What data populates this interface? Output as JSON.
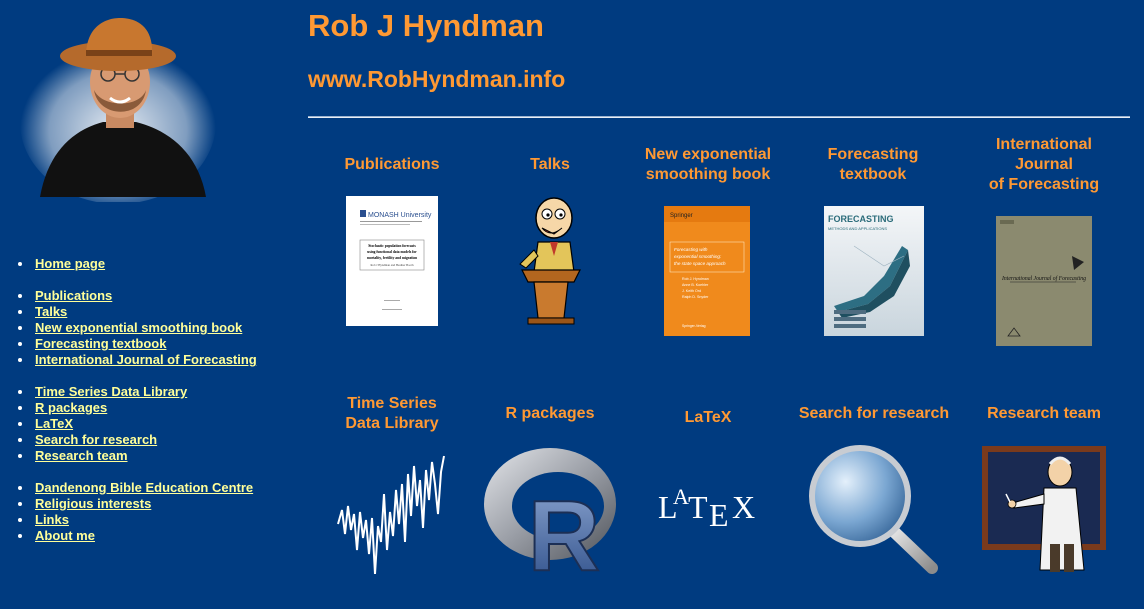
{
  "header": {
    "title": "Rob J Hyndman",
    "url": "www.RobHyndman.info"
  },
  "nav": {
    "items": [
      {
        "label": "Home page",
        "gap": false
      },
      {
        "label": "Publications",
        "gap": true
      },
      {
        "label": "Talks",
        "gap": false
      },
      {
        "label": "New exponential smoothing book",
        "gap": false
      },
      {
        "label": "Forecasting textbook",
        "gap": false
      },
      {
        "label": "International Journal of Forecasting",
        "gap": false
      },
      {
        "label": "Time Series Data Library",
        "gap": true
      },
      {
        "label": "R packages",
        "gap": false
      },
      {
        "label": "LaTeX",
        "gap": false
      },
      {
        "label": "Search for research",
        "gap": false
      },
      {
        "label": "Research team",
        "gap": false
      },
      {
        "label": "Dandenong Bible Education Centre",
        "gap": true
      },
      {
        "label": "Religious interests",
        "gap": false
      },
      {
        "label": "Links",
        "gap": false
      },
      {
        "label": "About me",
        "gap": false
      }
    ]
  },
  "grid": {
    "publications": {
      "lines": [
        "Publications"
      ],
      "thumb": {
        "university": "MONASH University",
        "title_lines": [
          "Stochastic population forecasts",
          "using functional data models for",
          "mortality, fertility and migration"
        ],
        "authors": "Rob J Hyndman and Heather Booth"
      }
    },
    "talks": {
      "lines": [
        "Talks"
      ]
    },
    "expsmooth": {
      "lines": [
        "New exponential",
        "smoothing book"
      ],
      "thumb": {
        "publisher": "Springer",
        "title_lines": [
          "Forecasting with",
          "exponential smoothing:",
          "the state space approach"
        ],
        "authors": [
          "Rob J. Hyndman",
          "Anne B. Koehler",
          "J. Keith Ord",
          "Ralph D. Snyder"
        ],
        "footer": "Springer-Verlag"
      }
    },
    "textbook": {
      "lines": [
        "Forecasting",
        "textbook"
      ],
      "thumb": {
        "title": "FORECASTING",
        "subtitle": "METHODS AND APPLICATIONS"
      }
    },
    "ijf": {
      "lines": [
        "International",
        "Journal",
        "of Forecasting"
      ],
      "thumb": {
        "title": "International Journal of Forecasting"
      }
    },
    "tsdl": {
      "lines": [
        "Time Series",
        "Data Library"
      ]
    },
    "rpackages": {
      "lines": [
        "R packages"
      ],
      "thumb": {
        "letter": "R"
      }
    },
    "latex": {
      "lines": [
        "LaTeX"
      ],
      "thumb": {
        "parts": [
          "L",
          "A",
          "T",
          "E",
          "X"
        ]
      }
    },
    "search": {
      "lines": [
        "Search for research"
      ]
    },
    "team": {
      "lines": [
        "Research team"
      ]
    }
  },
  "colors": {
    "background": "#003b80",
    "heading": "#ff9933",
    "link": "#ffff99"
  }
}
